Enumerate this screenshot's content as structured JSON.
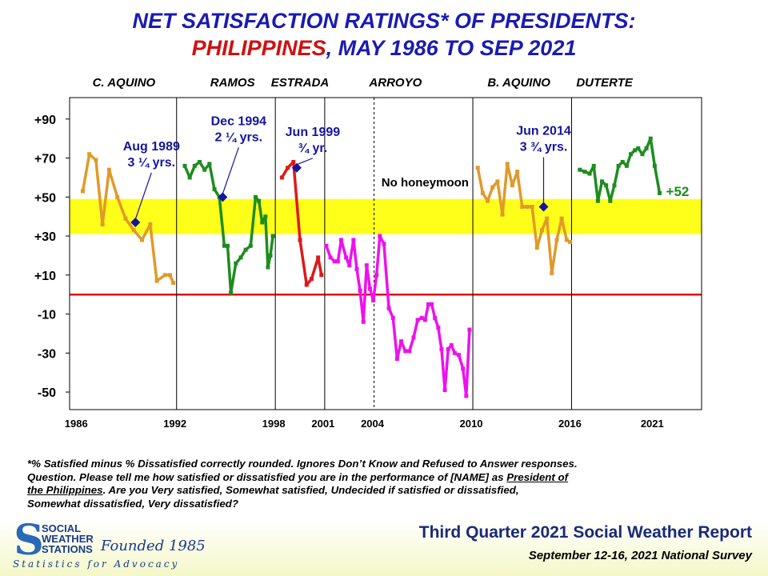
{
  "title": {
    "line1": "NET SATISFACTION  RATINGS* OF PRESIDENTS:",
    "line2_country": "PHILIPPINES",
    "line2_rest": ",  MAY 1986 TO SEP 2021"
  },
  "colors": {
    "title_blue": "#1b1bb0",
    "title_red": "#d01010",
    "orange": "#e09a2a",
    "green": "#1e8c1e",
    "red": "#e01818",
    "magenta": "#ee10ee",
    "marker": "#1515a0",
    "band": "#ffff19",
    "zero_line": "#e01010"
  },
  "chart_data": {
    "type": "line",
    "xlabel": "",
    "ylabel": "",
    "ylim": [
      -59,
      101
    ],
    "xlim": [
      1985.6,
      2024.0
    ],
    "x_ticks": [
      "1986",
      "1992",
      "1998",
      "2001",
      "2004",
      "2010",
      "2016",
      "2021"
    ],
    "x_tick_values": [
      1986,
      1992,
      1998,
      2001,
      2004,
      2010,
      2016,
      2021
    ],
    "y_ticks": [
      "+90",
      "+70",
      "+50",
      "+30",
      "+10",
      "-10",
      "-30",
      "-50"
    ],
    "y_tick_values": [
      90,
      70,
      50,
      30,
      10,
      -10,
      -30,
      -50
    ],
    "band": [
      31,
      49
    ],
    "reference_line": 0,
    "term_boundaries": [
      1992.1,
      1998.1,
      2001.1,
      2010.1,
      2016.1
    ],
    "dashed_boundary": 2004.1,
    "president_labels": [
      {
        "name": "C. AQUINO",
        "x": 1988.9
      },
      {
        "name": "RAMOS",
        "x": 1995.5
      },
      {
        "name": "ESTRADA",
        "x": 1999.6
      },
      {
        "name": "ARROYO",
        "x": 2005.4
      },
      {
        "name": "B. AQUINO",
        "x": 2012.9
      },
      {
        "name": "DUTERTE",
        "x": 2018.1
      }
    ],
    "series": [
      {
        "name": "C. AQUINO",
        "color": "orange",
        "x": [
          1986.4,
          1986.8,
          1987.2,
          1987.6,
          1988.0,
          1988.5,
          1989.0,
          1989.5,
          1990.0,
          1990.5,
          1990.9,
          1991.4,
          1991.7,
          1991.9
        ],
        "y": [
          53,
          72,
          69,
          36,
          64,
          50,
          39,
          33,
          28,
          36,
          7,
          10,
          10,
          6
        ]
      },
      {
        "name": "RAMOS",
        "color": "green",
        "x": [
          1992.6,
          1992.9,
          1993.2,
          1993.5,
          1993.8,
          1994.1,
          1994.4,
          1994.7,
          1995.0,
          1995.2,
          1995.4,
          1995.7,
          1996.0,
          1996.3,
          1996.6,
          1996.9,
          1997.1,
          1997.3,
          1997.5,
          1997.65,
          1997.8,
          1997.95
        ],
        "y": [
          66,
          60,
          66,
          68,
          64,
          67,
          54,
          50,
          25,
          25,
          1,
          16,
          19,
          23,
          25,
          50,
          48,
          37,
          40,
          14,
          20,
          30
        ]
      },
      {
        "name": "ESTRADA",
        "color": "red",
        "x": [
          1998.5,
          1998.85,
          1999.2,
          1999.6,
          2000.0,
          2000.3,
          2000.7,
          2000.9
        ],
        "y": [
          60,
          65,
          68,
          28,
          5,
          8,
          19,
          10
        ]
      },
      {
        "name": "ARROYO",
        "color": "magenta",
        "x": [
          2001.2,
          2001.45,
          2001.7,
          2001.9,
          2002.1,
          2002.4,
          2002.6,
          2002.85,
          2003.05,
          2003.25,
          2003.45,
          2003.65,
          2003.85,
          2004.05,
          2004.25,
          2004.45,
          2004.7,
          2005.0,
          2005.25,
          2005.5,
          2005.75,
          2006.0,
          2006.25,
          2006.5,
          2006.75,
          2007.0,
          2007.2,
          2007.4,
          2007.6,
          2007.8,
          2008.0,
          2008.2,
          2008.4,
          2008.6,
          2008.8,
          2009.0,
          2009.25,
          2009.5,
          2009.7,
          2009.9
        ],
        "y": [
          25,
          19,
          17,
          17,
          28,
          19,
          15,
          28,
          13,
          2,
          -14,
          15,
          3,
          -3,
          10,
          30,
          26,
          -7,
          -12,
          -33,
          -24,
          -29,
          -29,
          -22,
          -13,
          -12,
          -13,
          -5,
          -5,
          -12,
          -17,
          -28,
          -49,
          -28,
          -26,
          -30,
          -31,
          -38,
          -52,
          -18
        ]
      },
      {
        "name": "B. AQUINO",
        "color": "orange",
        "x": [
          2010.4,
          2010.7,
          2011.0,
          2011.3,
          2011.6,
          2011.9,
          2012.2,
          2012.5,
          2012.8,
          2013.1,
          2013.4,
          2013.7,
          2014.0,
          2014.3,
          2014.6,
          2014.9,
          2015.2,
          2015.5,
          2015.8,
          2016.0
        ],
        "y": [
          65,
          52,
          48,
          55,
          58,
          41,
          67,
          56,
          63,
          45,
          45,
          45,
          24,
          33,
          39,
          11,
          28,
          39,
          28,
          27
        ]
      },
      {
        "name": "DUTERTE",
        "color": "green",
        "x": [
          2016.6,
          2016.9,
          2017.2,
          2017.45,
          2017.7,
          2017.95,
          2018.2,
          2018.45,
          2018.7,
          2018.95,
          2019.2,
          2019.45,
          2019.7,
          2019.95,
          2020.15,
          2020.4,
          2020.65,
          2020.9,
          2021.15,
          2021.45
        ],
        "y": [
          64,
          63,
          62,
          66,
          48,
          58,
          56,
          48,
          56,
          66,
          68,
          66,
          72,
          74,
          75,
          72,
          75,
          80,
          66,
          52
        ]
      }
    ],
    "annotations": [
      {
        "line1": "Aug 1989",
        "line2": "3 ¼ yrs.",
        "point_x": 1989.6,
        "point_y": 37
      },
      {
        "line1": "Dec 1994",
        "line2": "2 ¼ yrs.",
        "point_x": 1994.9,
        "point_y": 50
      },
      {
        "line1": "Jun 1999",
        "line2": "¾ yr.",
        "point_x": 1999.4,
        "point_y": 65
      },
      {
        "line1": "Jun 2014",
        "line2": "3 ¾ yrs.",
        "point_x": 2014.4,
        "point_y": 45
      }
    ],
    "text_labels": {
      "no_honeymoon": "No honeymoon",
      "last_value": "+52"
    }
  },
  "footnote": {
    "line1": "*% Satisfied  minus  % Dissatisfied  correctly  rounded.  Ignores  Don’t  Know  and  Refused  to  Answer  responses.",
    "line2_a": "Question.  Please  tell  me  how  satisfied  or  dissatisfied  you  are  in  the  performance  of  [NAME]  as ",
    "line2_u": "President  of",
    "line3_u": "the  Philippines",
    "line3_b": ".   Are  you  Very  satisfied,  Somewhat  satisfied,  Undecided  if  satisfied  or  dissatisfied,",
    "line4": "Somewhat  dissatisfied,  Very  dissatisfied?"
  },
  "footer": {
    "logo_line1": "SOCIAL",
    "logo_line2": "WEATHER",
    "logo_line3": "STATIONS",
    "logo_founded": "Founded 1985",
    "logo_tagline": "Statistics for Advocacy",
    "report_title": "Third Quarter 2021 Social Weather Report",
    "survey_dates": "September 12-16, 2021 National Survey"
  }
}
